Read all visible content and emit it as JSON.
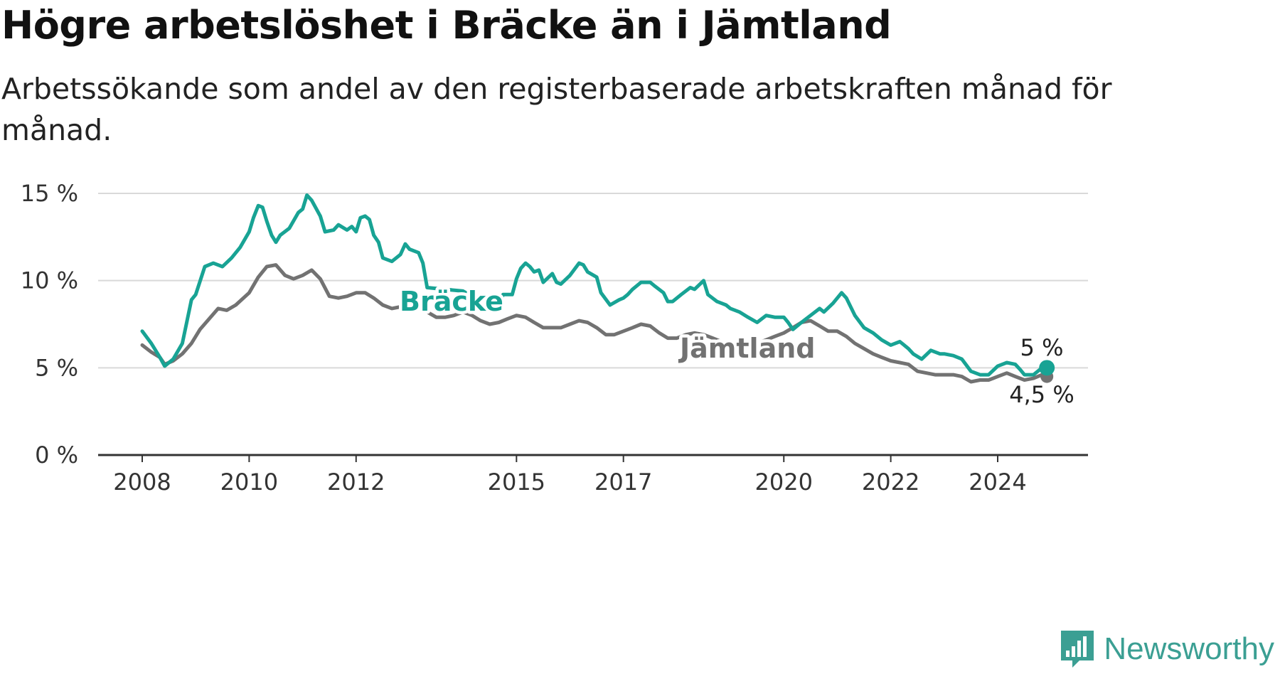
{
  "title": "Högre arbetslöshet i Bräcke än i Jämtland",
  "subtitle": "Arbetssökande som andel av den registerbaserade arbetskraften månad för månad.",
  "brand": "Newsworthy",
  "colors": {
    "bracke": "#18a394",
    "jamtland": "#727272",
    "grid": "#d9d9d9",
    "axis": "#333333",
    "brand": "#3b9f93"
  },
  "chart_data": {
    "type": "line",
    "title": "Högre arbetslöshet i Bräcke än i Jämtland",
    "subtitle": "Arbetssökande som andel av den registerbaserade arbetskraften månad för månad.",
    "xlabel": "",
    "ylabel": "",
    "ylim": [
      0,
      15
    ],
    "xlim": [
      2007.6,
      2025.8
    ],
    "y_ticks": [
      0,
      5,
      10,
      15
    ],
    "y_tick_labels": [
      "0 %",
      "5 %",
      "10 %",
      "15 %"
    ],
    "x_ticks": [
      2008,
      2010,
      2012,
      2015,
      2017,
      2020,
      2022,
      2024
    ],
    "x_tick_labels": [
      "2008",
      "2010",
      "2012",
      "2015",
      "2017",
      "2020",
      "2022",
      "2024"
    ],
    "grid": true,
    "legend": "inline labels",
    "series": [
      {
        "name": "Bräcke",
        "color": "#18a394",
        "end_label": "5 %",
        "points": [
          [
            2008.0,
            7.1
          ],
          [
            2008.17,
            6.4
          ],
          [
            2008.33,
            5.6
          ],
          [
            2008.42,
            5.1
          ],
          [
            2008.58,
            5.5
          ],
          [
            2008.75,
            6.4
          ],
          [
            2008.92,
            8.9
          ],
          [
            2009.0,
            9.2
          ],
          [
            2009.17,
            10.8
          ],
          [
            2009.33,
            11.0
          ],
          [
            2009.5,
            10.8
          ],
          [
            2009.67,
            11.3
          ],
          [
            2009.83,
            11.9
          ],
          [
            2010.0,
            12.8
          ],
          [
            2010.08,
            13.6
          ],
          [
            2010.17,
            14.3
          ],
          [
            2010.25,
            14.2
          ],
          [
            2010.33,
            13.4
          ],
          [
            2010.42,
            12.6
          ],
          [
            2010.5,
            12.2
          ],
          [
            2010.58,
            12.6
          ],
          [
            2010.75,
            13.0
          ],
          [
            2010.92,
            13.9
          ],
          [
            2011.0,
            14.1
          ],
          [
            2011.08,
            14.9
          ],
          [
            2011.17,
            14.6
          ],
          [
            2011.33,
            13.7
          ],
          [
            2011.42,
            12.8
          ],
          [
            2011.58,
            12.9
          ],
          [
            2011.67,
            13.2
          ],
          [
            2011.83,
            12.9
          ],
          [
            2011.92,
            13.1
          ],
          [
            2012.0,
            12.8
          ],
          [
            2012.08,
            13.6
          ],
          [
            2012.17,
            13.7
          ],
          [
            2012.25,
            13.5
          ],
          [
            2012.33,
            12.6
          ],
          [
            2012.42,
            12.2
          ],
          [
            2012.5,
            11.3
          ],
          [
            2012.67,
            11.1
          ],
          [
            2012.83,
            11.5
          ],
          [
            2012.92,
            12.1
          ],
          [
            2013.0,
            11.8
          ],
          [
            2013.17,
            11.6
          ],
          [
            2013.25,
            11.0
          ],
          [
            2013.33,
            9.6
          ],
          [
            2014.0,
            9.4
          ],
          [
            2014.17,
            9.1
          ],
          [
            2014.33,
            8.5
          ],
          [
            2014.5,
            8.4
          ],
          [
            2014.67,
            8.6
          ],
          [
            2014.75,
            9.2
          ],
          [
            2014.92,
            9.2
          ],
          [
            2015.0,
            10.1
          ],
          [
            2015.08,
            10.7
          ],
          [
            2015.17,
            11.0
          ],
          [
            2015.25,
            10.8
          ],
          [
            2015.33,
            10.5
          ],
          [
            2015.42,
            10.6
          ],
          [
            2015.5,
            9.9
          ],
          [
            2015.67,
            10.4
          ],
          [
            2015.75,
            9.9
          ],
          [
            2015.83,
            9.8
          ],
          [
            2016.0,
            10.3
          ],
          [
            2016.17,
            11.0
          ],
          [
            2016.25,
            10.9
          ],
          [
            2016.33,
            10.5
          ],
          [
            2016.5,
            10.2
          ],
          [
            2016.58,
            9.3
          ],
          [
            2016.75,
            8.6
          ],
          [
            2016.92,
            8.9
          ],
          [
            2017.0,
            9.0
          ],
          [
            2017.08,
            9.2
          ],
          [
            2017.17,
            9.5
          ],
          [
            2017.33,
            9.9
          ],
          [
            2017.5,
            9.9
          ],
          [
            2017.58,
            9.7
          ],
          [
            2017.75,
            9.3
          ],
          [
            2017.83,
            8.8
          ],
          [
            2017.92,
            8.8
          ],
          [
            2018.08,
            9.2
          ],
          [
            2018.25,
            9.6
          ],
          [
            2018.33,
            9.5
          ],
          [
            2018.5,
            10.0
          ],
          [
            2018.58,
            9.2
          ],
          [
            2018.75,
            8.8
          ],
          [
            2018.92,
            8.6
          ],
          [
            2019.0,
            8.4
          ],
          [
            2019.17,
            8.2
          ],
          [
            2019.33,
            7.9
          ],
          [
            2019.5,
            7.6
          ],
          [
            2019.67,
            8.0
          ],
          [
            2019.83,
            7.9
          ],
          [
            2020.0,
            7.9
          ],
          [
            2020.08,
            7.6
          ],
          [
            2020.17,
            7.2
          ],
          [
            2020.33,
            7.6
          ],
          [
            2020.5,
            8.0
          ],
          [
            2020.67,
            8.4
          ],
          [
            2020.75,
            8.2
          ],
          [
            2020.92,
            8.7
          ],
          [
            2021.08,
            9.3
          ],
          [
            2021.17,
            9.0
          ],
          [
            2021.33,
            8.0
          ],
          [
            2021.5,
            7.3
          ],
          [
            2021.67,
            7.0
          ],
          [
            2021.83,
            6.6
          ],
          [
            2022.0,
            6.3
          ],
          [
            2022.17,
            6.5
          ],
          [
            2022.33,
            6.1
          ],
          [
            2022.42,
            5.8
          ],
          [
            2022.58,
            5.5
          ],
          [
            2022.75,
            6.0
          ],
          [
            2022.92,
            5.8
          ],
          [
            2023.0,
            5.8
          ],
          [
            2023.17,
            5.7
          ],
          [
            2023.33,
            5.5
          ],
          [
            2023.5,
            4.8
          ],
          [
            2023.67,
            4.6
          ],
          [
            2023.83,
            4.6
          ],
          [
            2024.0,
            5.1
          ],
          [
            2024.17,
            5.3
          ],
          [
            2024.33,
            5.2
          ],
          [
            2024.42,
            4.9
          ],
          [
            2024.5,
            4.6
          ],
          [
            2024.67,
            4.6
          ],
          [
            2024.83,
            5.0
          ],
          [
            2024.92,
            5.0
          ]
        ]
      },
      {
        "name": "Jämtland",
        "color": "#727272",
        "end_label": "4,5 %",
        "points": [
          [
            2008.0,
            6.3
          ],
          [
            2008.17,
            5.9
          ],
          [
            2008.33,
            5.6
          ],
          [
            2008.42,
            5.2
          ],
          [
            2008.58,
            5.4
          ],
          [
            2008.75,
            5.8
          ],
          [
            2008.92,
            6.4
          ],
          [
            2009.08,
            7.2
          ],
          [
            2009.25,
            7.8
          ],
          [
            2009.42,
            8.4
          ],
          [
            2009.58,
            8.3
          ],
          [
            2009.75,
            8.6
          ],
          [
            2010.0,
            9.3
          ],
          [
            2010.17,
            10.2
          ],
          [
            2010.33,
            10.8
          ],
          [
            2010.5,
            10.9
          ],
          [
            2010.67,
            10.3
          ],
          [
            2010.83,
            10.1
          ],
          [
            2011.0,
            10.3
          ],
          [
            2011.17,
            10.6
          ],
          [
            2011.33,
            10.1
          ],
          [
            2011.5,
            9.1
          ],
          [
            2011.67,
            9.0
          ],
          [
            2011.83,
            9.1
          ],
          [
            2012.0,
            9.3
          ],
          [
            2012.17,
            9.3
          ],
          [
            2012.33,
            9.0
          ],
          [
            2012.5,
            8.6
          ],
          [
            2012.67,
            8.4
          ],
          [
            2012.83,
            8.5
          ],
          [
            2013.0,
            8.6
          ],
          [
            2013.17,
            8.4
          ],
          [
            2013.33,
            8.2
          ],
          [
            2013.5,
            7.9
          ],
          [
            2013.67,
            7.9
          ],
          [
            2013.83,
            8.0
          ],
          [
            2014.0,
            8.2
          ],
          [
            2014.17,
            8.0
          ],
          [
            2014.33,
            7.7
          ],
          [
            2014.5,
            7.5
          ],
          [
            2014.67,
            7.6
          ],
          [
            2014.83,
            7.8
          ],
          [
            2015.0,
            8.0
          ],
          [
            2015.17,
            7.9
          ],
          [
            2015.33,
            7.6
          ],
          [
            2015.5,
            7.3
          ],
          [
            2015.67,
            7.3
          ],
          [
            2015.83,
            7.3
          ],
          [
            2016.0,
            7.5
          ],
          [
            2016.17,
            7.7
          ],
          [
            2016.33,
            7.6
          ],
          [
            2016.5,
            7.3
          ],
          [
            2016.67,
            6.9
          ],
          [
            2016.83,
            6.9
          ],
          [
            2017.0,
            7.1
          ],
          [
            2017.17,
            7.3
          ],
          [
            2017.33,
            7.5
          ],
          [
            2017.5,
            7.4
          ],
          [
            2017.67,
            7.0
          ],
          [
            2017.83,
            6.7
          ],
          [
            2018.0,
            6.7
          ],
          [
            2018.17,
            6.9
          ],
          [
            2018.33,
            7.0
          ],
          [
            2018.5,
            6.9
          ],
          [
            2018.67,
            6.7
          ],
          [
            2018.83,
            6.5
          ],
          [
            2019.0,
            6.3
          ],
          [
            2019.17,
            6.4
          ],
          [
            2019.33,
            6.5
          ],
          [
            2019.5,
            6.4
          ],
          [
            2019.67,
            6.6
          ],
          [
            2019.83,
            6.8
          ],
          [
            2020.0,
            7.0
          ],
          [
            2020.17,
            7.3
          ],
          [
            2020.33,
            7.6
          ],
          [
            2020.5,
            7.7
          ],
          [
            2020.67,
            7.4
          ],
          [
            2020.83,
            7.1
          ],
          [
            2021.0,
            7.1
          ],
          [
            2021.17,
            6.8
          ],
          [
            2021.33,
            6.4
          ],
          [
            2021.5,
            6.1
          ],
          [
            2021.67,
            5.8
          ],
          [
            2021.83,
            5.6
          ],
          [
            2022.0,
            5.4
          ],
          [
            2022.17,
            5.3
          ],
          [
            2022.33,
            5.2
          ],
          [
            2022.5,
            4.8
          ],
          [
            2022.67,
            4.7
          ],
          [
            2022.83,
            4.6
          ],
          [
            2023.0,
            4.6
          ],
          [
            2023.17,
            4.6
          ],
          [
            2023.33,
            4.5
          ],
          [
            2023.5,
            4.2
          ],
          [
            2023.67,
            4.3
          ],
          [
            2023.83,
            4.3
          ],
          [
            2024.0,
            4.5
          ],
          [
            2024.17,
            4.7
          ],
          [
            2024.33,
            4.5
          ],
          [
            2024.5,
            4.3
          ],
          [
            2024.67,
            4.4
          ],
          [
            2024.83,
            4.6
          ],
          [
            2024.92,
            4.5
          ]
        ]
      }
    ]
  }
}
